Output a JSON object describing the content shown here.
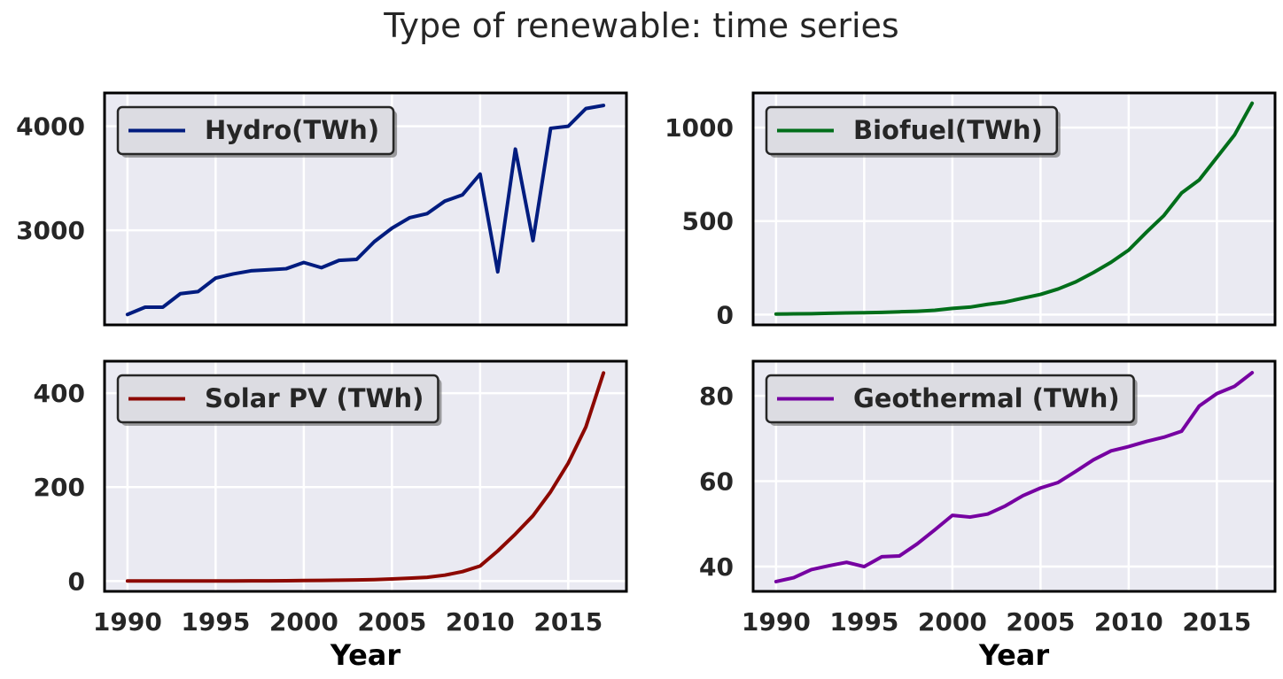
{
  "figure": {
    "title": "Type of renewable: time series"
  },
  "chart_data": [
    {
      "type": "line",
      "series": [
        {
          "name": "Hydro(TWh)",
          "color": "#001c7f"
        }
      ],
      "x": [
        1990,
        1991,
        1992,
        1993,
        1994,
        1995,
        1996,
        1997,
        1998,
        1999,
        2000,
        2001,
        2002,
        2003,
        2004,
        2005,
        2006,
        2007,
        2008,
        2009,
        2010,
        2011,
        2012,
        2013,
        2014,
        2015,
        2016,
        2017
      ],
      "y": [
        2190,
        2260,
        2260,
        2390,
        2410,
        2540,
        2580,
        2610,
        2620,
        2630,
        2690,
        2640,
        2710,
        2720,
        2890,
        3020,
        3120,
        3160,
        3280,
        3340,
        3540,
        2600,
        3780,
        2900,
        3980,
        4000,
        4170,
        4200
      ],
      "xlim": [
        1988.7,
        2018.3
      ],
      "ylim": [
        2090,
        4320
      ],
      "yticks": [
        3000,
        4000
      ],
      "xticks": [],
      "xlabel": "",
      "ylabel": "",
      "grid": true,
      "legend": "top-left"
    },
    {
      "type": "line",
      "series": [
        {
          "name": "Biofuel(TWh)",
          "color": "#006e1a"
        }
      ],
      "x": [
        1990,
        1991,
        1992,
        1993,
        1994,
        1995,
        1996,
        1997,
        1998,
        1999,
        2000,
        2001,
        2002,
        2003,
        2004,
        2005,
        2006,
        2007,
        2008,
        2009,
        2010,
        2011,
        2012,
        2013,
        2014,
        2015,
        2016,
        2017
      ],
      "y": [
        3,
        4,
        5,
        7,
        9,
        10,
        12,
        15,
        18,
        23,
        33,
        40,
        55,
        67,
        88,
        108,
        137,
        175,
        225,
        280,
        345,
        440,
        530,
        650,
        720,
        840,
        960,
        1130
      ],
      "xlim": [
        1988.7,
        2018.3
      ],
      "ylim": [
        -55,
        1185
      ],
      "yticks": [
        0,
        500,
        1000
      ],
      "xticks": [],
      "xlabel": "",
      "ylabel": "",
      "grid": true,
      "legend": "top-left"
    },
    {
      "type": "line",
      "series": [
        {
          "name": "Solar PV (TWh)",
          "color": "#8c0800"
        }
      ],
      "x": [
        1990,
        1991,
        1992,
        1993,
        1994,
        1995,
        1996,
        1997,
        1998,
        1999,
        2000,
        2001,
        2002,
        2003,
        2004,
        2005,
        2006,
        2007,
        2008,
        2009,
        2010,
        2011,
        2012,
        2013,
        2014,
        2015,
        2016,
        2017
      ],
      "y": [
        0.1,
        0.1,
        0.1,
        0.1,
        0.2,
        0.2,
        0.2,
        0.3,
        0.4,
        0.5,
        1.0,
        1.3,
        1.7,
        2.3,
        3.0,
        4.5,
        6.0,
        8.0,
        12.5,
        20.0,
        32.0,
        64.0,
        100.0,
        139.0,
        190.0,
        251.0,
        328.0,
        443.0
      ],
      "xlim": [
        1988.7,
        2018.3
      ],
      "ylim": [
        -22,
        468
      ],
      "yticks": [
        0,
        200,
        400
      ],
      "xticks": [
        1990,
        1995,
        2000,
        2005,
        2010,
        2015
      ],
      "xlabel": "Year",
      "ylabel": "",
      "grid": true,
      "legend": "top-left"
    },
    {
      "type": "line",
      "series": [
        {
          "name": "Geothermal (TWh)",
          "color": "#7600a1"
        }
      ],
      "x": [
        1990,
        1991,
        1992,
        1993,
        1994,
        1995,
        1996,
        1997,
        1998,
        1999,
        2000,
        2001,
        2002,
        2003,
        2004,
        2005,
        2006,
        2007,
        2008,
        2009,
        2010,
        2011,
        2012,
        2013,
        2014,
        2015,
        2016,
        2017
      ],
      "y": [
        36.5,
        37.4,
        39.3,
        40.2,
        41.0,
        40.0,
        42.3,
        42.5,
        45.3,
        48.6,
        52.0,
        51.6,
        52.3,
        54.2,
        56.6,
        58.4,
        59.7,
        62.3,
        65.0,
        67.1,
        68.1,
        69.3,
        70.3,
        71.7,
        77.6,
        80.5,
        82.2,
        85.4
      ],
      "xlim": [
        1988.7,
        2018.3
      ],
      "ylim": [
        34.2,
        88.1
      ],
      "yticks": [
        40,
        60,
        80
      ],
      "xticks": [
        1990,
        1995,
        2000,
        2005,
        2010,
        2015
      ],
      "xlabel": "Year",
      "ylabel": "",
      "grid": true,
      "legend": "top-left"
    }
  ]
}
